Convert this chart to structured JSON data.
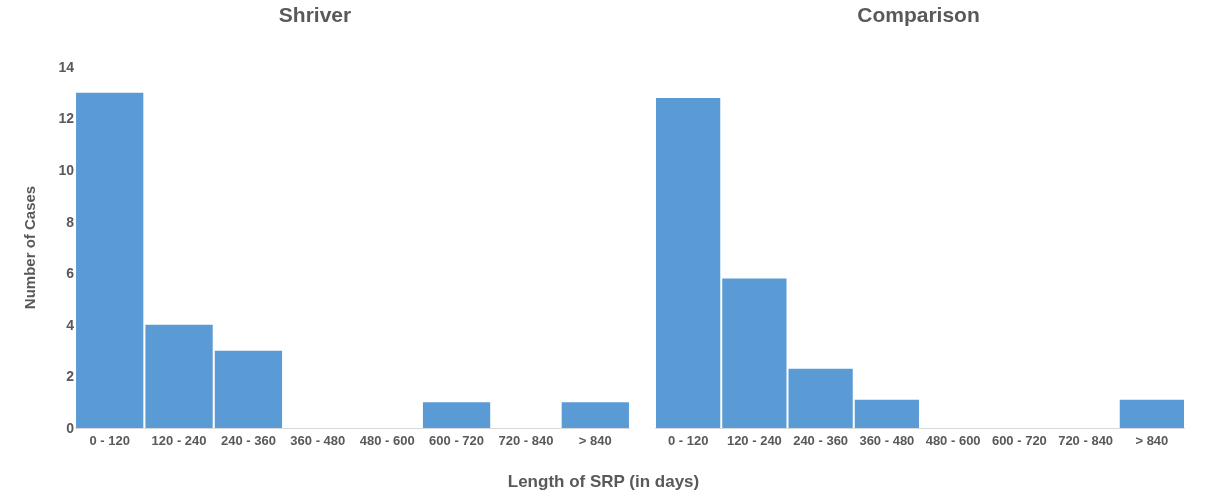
{
  "chart_data": [
    {
      "type": "bar",
      "title": "Shriver",
      "ylabel": "Number of Cases",
      "xlabel": "Length of SRP (in days)",
      "categories": [
        "0 - 120",
        "120 - 240",
        "240 - 360",
        "360 - 480",
        "480 - 600",
        "600 - 720",
        "720 - 840",
        "> 840"
      ],
      "values": [
        13,
        4,
        3,
        0,
        0,
        1,
        0,
        1
      ],
      "color": "#5b9bd5",
      "ylim": [
        0,
        14
      ],
      "yticks": [
        0,
        2,
        4,
        6,
        8,
        10,
        12,
        14
      ],
      "grid": false,
      "legend": false
    },
    {
      "type": "bar",
      "title": "Comparison",
      "categories": [
        "0 - 120",
        "120 - 240",
        "240 - 360",
        "360 - 480",
        "480 - 600",
        "600 - 720",
        "720 - 840",
        "> 840"
      ],
      "values": [
        12.8,
        5.8,
        2.3,
        1.1,
        0,
        0,
        0,
        1.1
      ],
      "color": "#5b9bd5",
      "ylim": [
        0,
        14
      ],
      "tick_labels": "x",
      "grid": false,
      "legend": false
    }
  ]
}
